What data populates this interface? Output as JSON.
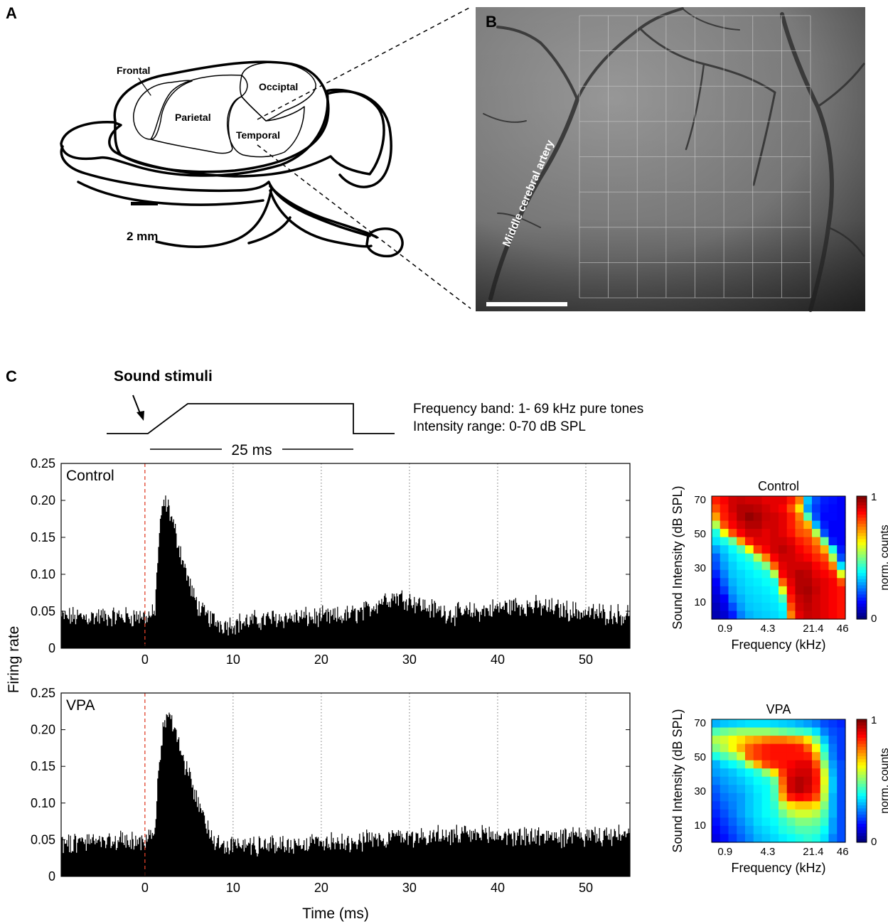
{
  "panel_a": {
    "letter": "A",
    "regions": {
      "frontal": "Frontal",
      "parietal": "Parietal",
      "occipital": "Occiptal",
      "temporal": "Temporal"
    },
    "scale_bar_label": "2 mm"
  },
  "panel_b": {
    "letter": "B",
    "vessel_label": "Middle cerebral artery",
    "grid_cols": 8,
    "grid_rows": 8
  },
  "panel_c": {
    "letter": "C",
    "stimulus_title": "Sound stimuli",
    "duration_label": "25 ms",
    "info_line_1": "Frequency band: 1- 69 kHz pure tones",
    "info_line_2": "Intensity range: 0-70 dB SPL"
  },
  "colors": {
    "bars": "#000000",
    "onset_line": "#e0402a",
    "gridline": "#777777"
  },
  "chart_data": [
    {
      "type": "bar",
      "name": "psth-control",
      "title": "Control",
      "xlabel": "",
      "ylabel": "Firing rate",
      "xlim": [
        -9.5,
        55
      ],
      "ylim": [
        0,
        0.25
      ],
      "xticks": [
        0,
        10,
        20,
        30,
        40,
        50
      ],
      "yticks": [
        "0",
        "0.05",
        "0.10",
        "0.15",
        "0.20",
        "0.25"
      ],
      "onset_ms": 0,
      "bin_ms": 0.1,
      "profile": {
        "x": [
          -9.5,
          0,
          1.1,
          1.6,
          2.1,
          2.7,
          3.5,
          4.5,
          5.5,
          6.5,
          8,
          9,
          10,
          15,
          22,
          25,
          27,
          28.5,
          30,
          32,
          35,
          38,
          42,
          45,
          50,
          55
        ],
        "y": [
          0.042,
          0.043,
          0.045,
          0.15,
          0.198,
          0.19,
          0.155,
          0.11,
          0.07,
          0.048,
          0.036,
          0.032,
          0.033,
          0.041,
          0.042,
          0.05,
          0.066,
          0.07,
          0.066,
          0.055,
          0.046,
          0.05,
          0.058,
          0.056,
          0.048,
          0.045
        ]
      },
      "grid": "x-dotted"
    },
    {
      "type": "bar",
      "name": "psth-vpa",
      "title": "VPA",
      "xlabel": "Time (ms)",
      "ylabel": "Firing rate",
      "xlim": [
        -9.5,
        55
      ],
      "ylim": [
        0,
        0.25
      ],
      "xticks": [
        0,
        10,
        20,
        30,
        40,
        50
      ],
      "yticks": [
        "0",
        "0.05",
        "0.10",
        "0.15",
        "0.20",
        "0.25"
      ],
      "onset_ms": 0,
      "bin_ms": 0.1,
      "profile": {
        "x": [
          -9.5,
          0,
          1,
          1.5,
          2,
          2.6,
          3.2,
          4,
          5,
          6,
          7,
          8,
          9,
          10,
          15,
          25,
          30,
          35,
          40,
          45,
          50,
          55
        ],
        "y": [
          0.047,
          0.049,
          0.05,
          0.13,
          0.2,
          0.218,
          0.205,
          0.17,
          0.135,
          0.1,
          0.07,
          0.05,
          0.043,
          0.042,
          0.043,
          0.05,
          0.055,
          0.055,
          0.056,
          0.054,
          0.054,
          0.055
        ]
      },
      "grid": "x-dotted"
    },
    {
      "type": "heatmap",
      "name": "fra-control",
      "title": "Control",
      "xlabel": "Frequency (kHz)",
      "ylabel": "Sound Intensity (dB SPL)",
      "xticks": [
        "0.9",
        "4.3",
        "21.4",
        "46"
      ],
      "yticks": [
        "10",
        "30",
        "50",
        "70"
      ],
      "colorbar_label": "norm. counts",
      "colorbar_ticks": [
        "0",
        "1"
      ],
      "colormap": "jet",
      "z_range": [
        0,
        1
      ],
      "intensity_rows": [
        70,
        65,
        60,
        55,
        50,
        45,
        40,
        35,
        30,
        25,
        20,
        15,
        10,
        5,
        0
      ],
      "values": [
        [
          0.85,
          0.88,
          0.92,
          0.93,
          0.92,
          0.92,
          0.9,
          0.9,
          0.9,
          0.85,
          0.75,
          0.32,
          0.2,
          0.15,
          0.14,
          0.12
        ],
        [
          0.8,
          0.86,
          0.92,
          0.95,
          0.95,
          0.94,
          0.92,
          0.9,
          0.88,
          0.8,
          0.65,
          0.28,
          0.18,
          0.14,
          0.13,
          0.12
        ],
        [
          0.72,
          0.85,
          0.9,
          0.95,
          0.98,
          0.96,
          0.93,
          0.92,
          0.9,
          0.85,
          0.75,
          0.45,
          0.2,
          0.13,
          0.13,
          0.12
        ],
        [
          0.55,
          0.8,
          0.88,
          0.92,
          0.95,
          0.95,
          0.92,
          0.92,
          0.9,
          0.85,
          0.78,
          0.7,
          0.3,
          0.15,
          0.12,
          0.12
        ],
        [
          0.4,
          0.62,
          0.8,
          0.88,
          0.92,
          0.92,
          0.9,
          0.92,
          0.9,
          0.86,
          0.8,
          0.78,
          0.55,
          0.2,
          0.12,
          0.12
        ],
        [
          0.35,
          0.4,
          0.48,
          0.72,
          0.85,
          0.9,
          0.9,
          0.92,
          0.92,
          0.9,
          0.85,
          0.82,
          0.75,
          0.48,
          0.15,
          0.12
        ],
        [
          0.28,
          0.33,
          0.38,
          0.45,
          0.62,
          0.82,
          0.88,
          0.92,
          0.94,
          0.92,
          0.88,
          0.85,
          0.8,
          0.7,
          0.4,
          0.15
        ],
        [
          0.22,
          0.3,
          0.35,
          0.38,
          0.42,
          0.55,
          0.75,
          0.88,
          0.92,
          0.92,
          0.9,
          0.88,
          0.84,
          0.8,
          0.55,
          0.2
        ],
        [
          0.2,
          0.28,
          0.33,
          0.36,
          0.38,
          0.42,
          0.5,
          0.78,
          0.9,
          0.92,
          0.92,
          0.92,
          0.88,
          0.85,
          0.75,
          0.35
        ],
        [
          0.16,
          0.25,
          0.32,
          0.34,
          0.36,
          0.38,
          0.4,
          0.55,
          0.88,
          0.92,
          0.95,
          0.94,
          0.9,
          0.88,
          0.85,
          0.6
        ],
        [
          0.12,
          0.22,
          0.3,
          0.33,
          0.35,
          0.36,
          0.38,
          0.4,
          0.78,
          0.9,
          0.95,
          0.95,
          0.92,
          0.9,
          0.88,
          0.8
        ],
        [
          0.1,
          0.18,
          0.28,
          0.32,
          0.34,
          0.35,
          0.36,
          0.38,
          0.6,
          0.88,
          0.95,
          0.96,
          0.93,
          0.9,
          0.88,
          0.86
        ],
        [
          0.08,
          0.12,
          0.25,
          0.3,
          0.33,
          0.34,
          0.35,
          0.36,
          0.45,
          0.85,
          0.93,
          0.95,
          0.92,
          0.9,
          0.88,
          0.86
        ],
        [
          0.06,
          0.1,
          0.2,
          0.28,
          0.32,
          0.33,
          0.34,
          0.35,
          0.38,
          0.8,
          0.92,
          0.94,
          0.92,
          0.9,
          0.88,
          0.86
        ],
        [
          0.05,
          0.08,
          0.15,
          0.25,
          0.3,
          0.32,
          0.33,
          0.34,
          0.36,
          0.75,
          0.9,
          0.93,
          0.92,
          0.9,
          0.88,
          0.86
        ]
      ]
    },
    {
      "type": "heatmap",
      "name": "fra-vpa",
      "title": "VPA",
      "xlabel": "Frequency (kHz)",
      "ylabel": "Sound Intensity (dB SPL)",
      "xticks": [
        "0.9",
        "4.3",
        "21.4",
        "46"
      ],
      "yticks": [
        "10",
        "30",
        "50",
        "70"
      ],
      "colorbar_label": "norm. counts",
      "colorbar_ticks": [
        "0",
        "1"
      ],
      "colormap": "jet",
      "z_range": [
        0,
        1
      ],
      "intensity_rows": [
        70,
        65,
        60,
        55,
        50,
        45,
        40,
        35,
        30,
        25,
        20,
        15,
        10,
        5,
        0
      ],
      "values": [
        [
          0.3,
          0.32,
          0.33,
          0.34,
          0.35,
          0.35,
          0.35,
          0.34,
          0.33,
          0.32,
          0.3,
          0.28,
          0.25,
          0.2,
          0.18,
          0.16
        ],
        [
          0.45,
          0.48,
          0.5,
          0.52,
          0.52,
          0.52,
          0.52,
          0.5,
          0.48,
          0.46,
          0.44,
          0.42,
          0.35,
          0.25,
          0.2,
          0.18
        ],
        [
          0.55,
          0.58,
          0.62,
          0.65,
          0.7,
          0.72,
          0.75,
          0.76,
          0.76,
          0.74,
          0.72,
          0.65,
          0.5,
          0.32,
          0.22,
          0.18
        ],
        [
          0.5,
          0.55,
          0.62,
          0.7,
          0.78,
          0.82,
          0.85,
          0.86,
          0.86,
          0.86,
          0.85,
          0.78,
          0.62,
          0.4,
          0.24,
          0.18
        ],
        [
          0.4,
          0.45,
          0.5,
          0.58,
          0.78,
          0.82,
          0.85,
          0.86,
          0.86,
          0.86,
          0.86,
          0.85,
          0.72,
          0.45,
          0.25,
          0.18
        ],
        [
          0.3,
          0.35,
          0.38,
          0.42,
          0.55,
          0.7,
          0.8,
          0.84,
          0.86,
          0.88,
          0.9,
          0.9,
          0.8,
          0.52,
          0.28,
          0.2
        ],
        [
          0.28,
          0.3,
          0.32,
          0.35,
          0.38,
          0.42,
          0.52,
          0.65,
          0.82,
          0.9,
          0.92,
          0.92,
          0.85,
          0.58,
          0.3,
          0.2
        ],
        [
          0.25,
          0.28,
          0.3,
          0.32,
          0.35,
          0.38,
          0.4,
          0.48,
          0.78,
          0.92,
          0.95,
          0.93,
          0.86,
          0.6,
          0.32,
          0.2
        ],
        [
          0.22,
          0.26,
          0.28,
          0.3,
          0.33,
          0.36,
          0.38,
          0.45,
          0.75,
          0.92,
          0.95,
          0.92,
          0.85,
          0.58,
          0.32,
          0.2
        ],
        [
          0.2,
          0.24,
          0.26,
          0.28,
          0.32,
          0.35,
          0.38,
          0.44,
          0.7,
          0.85,
          0.88,
          0.86,
          0.8,
          0.55,
          0.3,
          0.2
        ],
        [
          0.18,
          0.22,
          0.25,
          0.28,
          0.32,
          0.35,
          0.38,
          0.42,
          0.55,
          0.65,
          0.68,
          0.68,
          0.65,
          0.5,
          0.3,
          0.2
        ],
        [
          0.16,
          0.2,
          0.24,
          0.28,
          0.32,
          0.35,
          0.38,
          0.4,
          0.48,
          0.55,
          0.58,
          0.58,
          0.55,
          0.45,
          0.3,
          0.2
        ],
        [
          0.14,
          0.18,
          0.22,
          0.26,
          0.3,
          0.34,
          0.36,
          0.38,
          0.42,
          0.46,
          0.5,
          0.5,
          0.48,
          0.42,
          0.28,
          0.2
        ],
        [
          0.12,
          0.16,
          0.2,
          0.24,
          0.28,
          0.32,
          0.34,
          0.36,
          0.4,
          0.42,
          0.45,
          0.45,
          0.44,
          0.38,
          0.28,
          0.2
        ],
        [
          0.1,
          0.14,
          0.18,
          0.22,
          0.26,
          0.3,
          0.32,
          0.34,
          0.36,
          0.38,
          0.4,
          0.42,
          0.4,
          0.35,
          0.25,
          0.2
        ]
      ]
    }
  ]
}
